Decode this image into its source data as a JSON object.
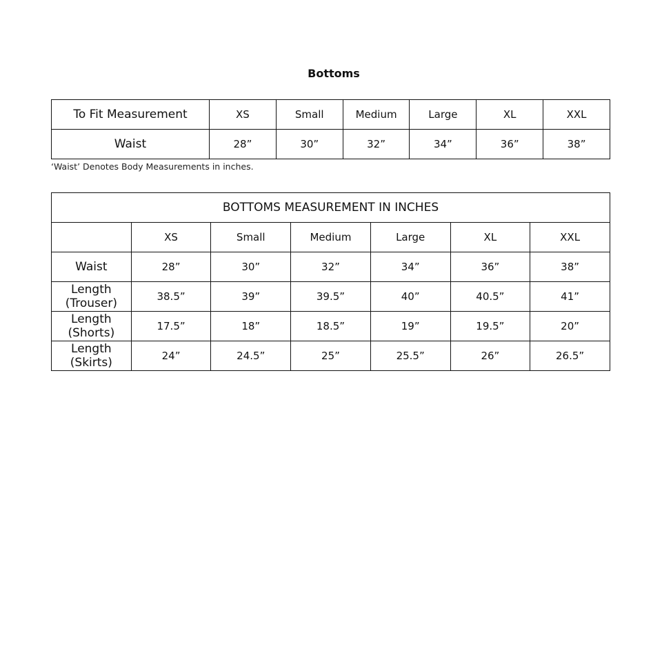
{
  "title": "Bottoms",
  "fit_table": {
    "header": [
      "To Fit Measurement",
      "XS",
      "Small",
      "Medium",
      "Large",
      "XL",
      "XXL"
    ],
    "rows": [
      [
        "Waist",
        "28”",
        "30”",
        "32”",
        "34”",
        "36”",
        "38”"
      ]
    ]
  },
  "note": "‘Waist’ Denotes Body Measurements in inches.",
  "measure_table": {
    "title": "BOTTOMS MEASUREMENT IN INCHES",
    "header": [
      "",
      "XS",
      "Small",
      "Medium",
      "Large",
      "XL",
      "XXL"
    ],
    "rows": [
      [
        "Waist",
        "28”",
        "30”",
        "32”",
        "34”",
        "36”",
        "38”"
      ],
      [
        "Length (Trouser)",
        "38.5”",
        "39”",
        "39.5”",
        "40”",
        "40.5”",
        "41”"
      ],
      [
        "Length (Shorts)",
        "17.5”",
        "18”",
        "18.5”",
        "19”",
        "19.5”",
        "20”"
      ],
      [
        "Length  (Skirts)",
        "24”",
        "24.5”",
        "25”",
        "25.5”",
        "26”",
        "26.5”"
      ]
    ]
  }
}
